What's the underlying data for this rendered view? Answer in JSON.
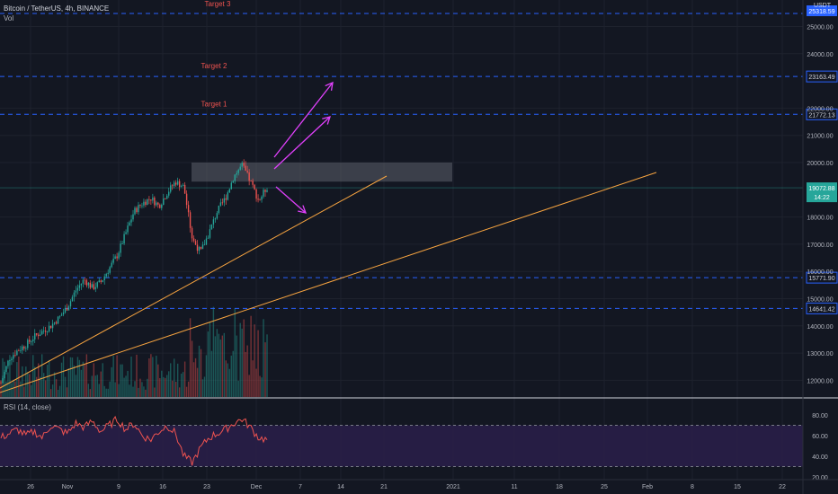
{
  "header": {
    "symbol": "Bitcoin / TetherUS, 4h, BINANCE",
    "volume_label": "Vol",
    "currency": "USDT",
    "rsi_label": "RSI (14, close)"
  },
  "price_axis": {
    "ticks": [
      "25000.00",
      "24000.00",
      "22000.00",
      "21000.00",
      "20000.00",
      "18000.00",
      "17000.00",
      "16000.00",
      "15000.00",
      "14000.00",
      "13000.00",
      "12000.00"
    ],
    "tick_values": [
      25000,
      24000,
      22000,
      21000,
      20000,
      18000,
      17000,
      16000,
      15000,
      14000,
      13000,
      12000
    ],
    "top_value_label": "25318.59"
  },
  "levels": [
    {
      "value": 23163.49,
      "label": "23163.49",
      "text": "Target 2"
    },
    {
      "value": 21772.13,
      "label": "21772.13",
      "text": "Target 1"
    },
    {
      "value": 15771.9,
      "label": "15771.90",
      "text": ""
    },
    {
      "value": 14641.42,
      "label": "14641.42",
      "text": ""
    }
  ],
  "target3_text": "Target 3",
  "current_price": {
    "value": 19072.88,
    "label": "19072.88",
    "countdown": "14:22"
  },
  "rsi_axis": {
    "ticks": [
      "80.00",
      "60.00",
      "40.00",
      "20.00"
    ],
    "tick_values": [
      80,
      60,
      40,
      20
    ],
    "upper": 70,
    "lower": 30
  },
  "time_axis": {
    "labels": [
      "26",
      "Nov",
      "9",
      "16",
      "23",
      "Dec",
      "7",
      "14",
      "21",
      "2021",
      "11",
      "18",
      "25",
      "Feb",
      "8",
      "15",
      "22"
    ]
  },
  "colors": {
    "background": "#131722",
    "up": "#26a69a",
    "down": "#ef5350",
    "level_line": "#2962ff",
    "trendline": "#f7a440",
    "arrow": "#e040fb",
    "target_text": "#ef5350",
    "rsi_line": "#ef5350",
    "rsi_band": "#2a1f4a",
    "resistance_box": "#5d606b"
  },
  "chart_data": {
    "type": "candlestick",
    "x": [
      "26",
      "Nov",
      "9",
      "16",
      "23",
      "Dec"
    ],
    "ylim": [
      11500,
      25400
    ],
    "resistance_zone": [
      19300,
      20000
    ],
    "close_path": [
      11900,
      12800,
      13100,
      13300,
      13600,
      13800,
      14000,
      14300,
      14700,
      15300,
      15700,
      15400,
      15600,
      16100,
      16600,
      17400,
      18200,
      18500,
      18700,
      18400,
      18900,
      19300,
      19100,
      17200,
      16700,
      17400,
      18200,
      18700,
      19500,
      19900,
      19300,
      18600,
      19100
    ],
    "rsi_path": [
      58,
      62,
      66,
      60,
      64,
      58,
      70,
      66,
      62,
      72,
      68,
      74,
      64,
      70,
      76,
      66,
      72,
      60,
      56,
      64,
      70,
      62,
      40,
      34,
      48,
      58,
      62,
      66,
      72,
      76,
      68,
      58,
      56
    ]
  }
}
